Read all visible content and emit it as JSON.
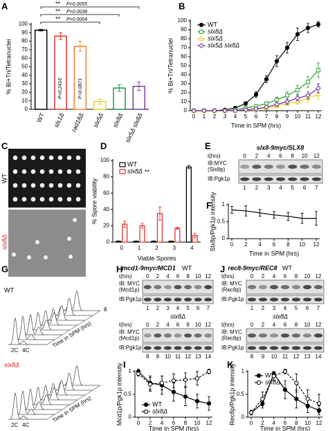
{
  "chart_data": [
    {
      "type": "bar",
      "panel": "A",
      "ylabel": "% Bi+Tri/Tetranuclei",
      "categories": [
        "WT",
        "sls1Δ",
        "rad18Δ",
        "slx5Δ",
        "slx8Δ",
        "slx5Δ slx8Δ"
      ],
      "values": [
        93,
        86,
        74,
        9,
        25,
        27
      ],
      "errors": [
        1,
        4,
        6,
        3,
        4,
        5
      ],
      "colors": [
        "#000000",
        "#e8302a",
        "#f0822a",
        "#e8d21a",
        "#1a9a4a",
        "#7a3a9a"
      ],
      "ylim": [
        0,
        100
      ],
      "yticks": [
        0,
        10,
        20,
        30,
        40,
        50,
        60,
        70,
        80,
        90,
        100
      ],
      "annotations": [
        "**",
        "P=0.0055",
        "**",
        "P=0.0038",
        "**",
        "P=0.0004",
        "P=0.2416",
        "P=0.0871"
      ]
    },
    {
      "type": "line",
      "panel": "B",
      "ylabel": "% Bi+Tri/Tetranuclei",
      "xlabel": "Time in SPM (hrs)",
      "x": [
        0,
        1,
        2,
        3,
        4,
        5,
        6,
        7,
        8,
        9,
        10,
        11,
        12
      ],
      "xlim": [
        0,
        12
      ],
      "xticks": [
        0,
        1,
        2,
        3,
        4,
        5,
        6,
        7,
        8,
        9,
        10,
        11,
        12
      ],
      "ylim": [
        0,
        100
      ],
      "yticks": [
        0,
        10,
        20,
        30,
        40,
        50,
        60,
        70,
        80,
        90,
        100
      ],
      "legend": "upper left",
      "series": [
        {
          "name": "WT",
          "color": "#000000",
          "marker": "circle",
          "filled": true,
          "values": [
            0,
            0,
            0,
            1,
            3,
            8,
            18,
            35,
            55,
            70,
            85,
            92,
            96
          ],
          "errors": [
            0,
            0,
            0,
            0.5,
            1,
            2,
            3,
            4,
            6,
            6,
            7,
            5,
            3
          ]
        },
        {
          "name": "slx8Δ",
          "color": "#2aa02a",
          "marker": "square",
          "filled": false,
          "values": [
            0,
            0,
            0,
            0,
            1,
            3,
            5,
            8,
            12,
            17,
            23,
            32,
            45
          ],
          "errors": [
            0,
            0,
            0,
            0,
            0.5,
            1,
            2,
            2,
            3,
            4,
            5,
            6,
            8
          ]
        },
        {
          "name": "slx5Δ",
          "color": "#e8d21a",
          "marker": "triangle",
          "filled": false,
          "values": [
            0,
            0,
            0,
            0,
            0,
            1,
            2,
            3,
            5,
            8,
            10,
            14,
            18
          ],
          "errors": [
            0,
            0,
            0,
            0,
            0,
            0.5,
            1,
            1,
            2,
            2,
            3,
            4,
            5
          ]
        },
        {
          "name": "slx5Δ slx8Δ",
          "color": "#6a2a9a",
          "marker": "diamond",
          "filled": false,
          "values": [
            0,
            0,
            0,
            0,
            0,
            1,
            2,
            4,
            7,
            10,
            14,
            17,
            25
          ],
          "errors": [
            0,
            0,
            0,
            0,
            0,
            0.5,
            1,
            1,
            2,
            3,
            3,
            4,
            5
          ]
        }
      ]
    },
    {
      "type": "bar",
      "panel": "D",
      "ylabel": "% Spore viability",
      "xlabel": "Viable Spores",
      "categories": [
        "0",
        "1",
        "2",
        "3",
        "4"
      ],
      "ylim": [
        0,
        100
      ],
      "yticks": [
        0,
        20,
        40,
        60,
        80,
        100
      ],
      "legend": "upper left",
      "series": [
        {
          "name": "WT",
          "color": "#000000",
          "values": [
            1,
            1,
            1,
            1,
            92
          ],
          "errors": [
            0.5,
            0.5,
            0.5,
            0.5,
            2
          ]
        },
        {
          "name": "slx8Δ",
          "color": "#e03030",
          "values": [
            22,
            20,
            35,
            17,
            8
          ],
          "errors": [
            4,
            3,
            8,
            1,
            3
          ]
        }
      ],
      "annotations": [
        "**"
      ]
    },
    {
      "type": "line",
      "panel": "F",
      "ylabel": "Slx8p/Pgk1p intensity",
      "xlabel": "Time in SPM (hrs)",
      "x": [
        0,
        2,
        4,
        6,
        8,
        10,
        12
      ],
      "xlim": [
        0,
        12
      ],
      "xticks": [
        0,
        2,
        4,
        6,
        8,
        10,
        12
      ],
      "ylim": [
        0,
        1
      ],
      "yticks": [
        0,
        0.5,
        1
      ],
      "series": [
        {
          "color": "#000000",
          "marker": "none",
          "values": [
            0.85,
            0.82,
            0.76,
            0.7,
            0.66,
            0.6,
            0.6
          ],
          "errors": [
            0.1,
            0.15,
            0.1,
            0.1,
            0.12,
            0.15,
            0.2
          ]
        }
      ]
    },
    {
      "type": "line",
      "panel": "I",
      "ylabel": "Mcd1p/Pgk1p intensity",
      "xlabel": "Time in SPM (hrs)",
      "x": [
        0,
        2,
        4,
        6,
        8,
        10,
        12
      ],
      "xlim": [
        0,
        12
      ],
      "xticks": [
        0,
        2,
        4,
        6,
        8,
        10,
        12
      ],
      "ylim": [
        0,
        1
      ],
      "yticks": [
        0,
        0.5,
        1
      ],
      "legend": "lower left",
      "series": [
        {
          "name": "WT",
          "color": "#000000",
          "marker": "circle",
          "filled": true,
          "values": [
            1.0,
            0.75,
            0.7,
            0.55,
            0.45,
            0.35,
            0.3
          ],
          "errors": [
            0.05,
            0.15,
            0.2,
            0.2,
            0.2,
            0.15,
            0.15
          ]
        },
        {
          "name": "slx8Δ",
          "color": "#000000",
          "marker": "circle",
          "filled": false,
          "dashed": true,
          "values": [
            0.95,
            0.72,
            0.75,
            0.8,
            0.82,
            0.85,
            1.0
          ],
          "errors": [
            0.05,
            0.15,
            0.15,
            0.15,
            0.15,
            0.15,
            0.05
          ]
        }
      ]
    },
    {
      "type": "line",
      "panel": "K",
      "ylabel": "Rec8p/Pgk1p intensity",
      "xlabel": "Time in SPM (hrs)",
      "x": [
        0,
        2,
        4,
        6,
        8,
        10,
        12
      ],
      "xlim": [
        0,
        12
      ],
      "xticks": [
        0,
        2,
        4,
        6,
        8,
        10,
        12
      ],
      "ylim": [
        0,
        1
      ],
      "yticks": [
        0,
        0.5,
        1
      ],
      "legend": "upper left",
      "series": [
        {
          "name": "WT",
          "color": "#000000",
          "marker": "circle",
          "filled": true,
          "values": [
            0.1,
            0.3,
            0.95,
            0.6,
            0.4,
            0.25,
            0.15
          ],
          "errors": [
            0.05,
            0.1,
            0.05,
            0.2,
            0.2,
            0.15,
            0.1
          ]
        },
        {
          "name": "slx8Δ",
          "color": "#000000",
          "marker": "circle",
          "filled": false,
          "dashed": true,
          "values": [
            0.1,
            0.4,
            0.9,
            1.0,
            0.75,
            0.4,
            0.3
          ],
          "errors": [
            0.05,
            0.15,
            0.1,
            0.05,
            0.2,
            0.2,
            0.2
          ]
        }
      ]
    }
  ],
  "plates": {
    "panel": "C",
    "labels": [
      "WT",
      "slx8Δ"
    ]
  },
  "blots": [
    {
      "panel": "E",
      "title": "slx8-9myc/SLX8",
      "groups": [
        {
          "time_label": "t(hrs)",
          "times": [
            0,
            2,
            4,
            6,
            8,
            10,
            12
          ],
          "rows": [
            [
              "IB:MYC",
              "(Slx8p)"
            ],
            [
              "IB:Pgk1p"
            ]
          ],
          "lanes": [
            1,
            2,
            3,
            4,
            5,
            6,
            7
          ]
        }
      ]
    },
    {
      "panel": "H",
      "title": "mcd1-9myc/MCD1",
      "groups": [
        {
          "strain": "WT",
          "time_label": "t(hrs)",
          "times": [
            0,
            2,
            4,
            6,
            8,
            10,
            12
          ],
          "rows": [
            [
              "IB: MYC",
              "(Mcd1p)"
            ],
            [
              "IB:Pgk1p"
            ]
          ],
          "lanes": [
            1,
            2,
            3,
            4,
            5,
            6,
            7
          ]
        },
        {
          "strain": "slx8Δ",
          "time_label": "t(hrs)",
          "times": [
            0,
            2,
            4,
            6,
            8,
            10,
            12
          ],
          "rows": [
            [
              "IB: MYC",
              "(Mcd1p)"
            ],
            [
              "IB:Pgk1p"
            ]
          ],
          "lanes": [
            8,
            9,
            10,
            11,
            12,
            13,
            14
          ]
        }
      ]
    },
    {
      "panel": "J",
      "title": "rec8-9myc/REC8",
      "groups": [
        {
          "strain": "WT",
          "time_label": "t(hrs)",
          "times": [
            0,
            2,
            4,
            6,
            8,
            10,
            12
          ],
          "rows": [
            [
              "IB: MYC",
              "(Rec8p)"
            ],
            [
              "IB:Pgk1p"
            ]
          ],
          "lanes": [
            1,
            2,
            3,
            4,
            5,
            6,
            7
          ]
        },
        {
          "strain": "slx8Δ",
          "time_label": "t(hrs)",
          "times": [
            0,
            2,
            4,
            6,
            8,
            10,
            12
          ],
          "rows": [
            [
              "IB: MYC",
              "(Rec8p)"
            ],
            [
              "IB:Pgk1p"
            ]
          ],
          "lanes": [
            8,
            9,
            10,
            11,
            12,
            13,
            14
          ]
        }
      ]
    }
  ],
  "flow": {
    "panel": "G",
    "plots": [
      {
        "strain": "WT",
        "tick_labels": [
          "2C",
          "4C"
        ],
        "axis_label": "Time in SPM (hrs)",
        "end_label": "8"
      },
      {
        "strain": "slx8Δ",
        "tick_labels": [
          "2C",
          "4C"
        ],
        "axis_label": "Time in SPM (hrs)"
      }
    ]
  }
}
